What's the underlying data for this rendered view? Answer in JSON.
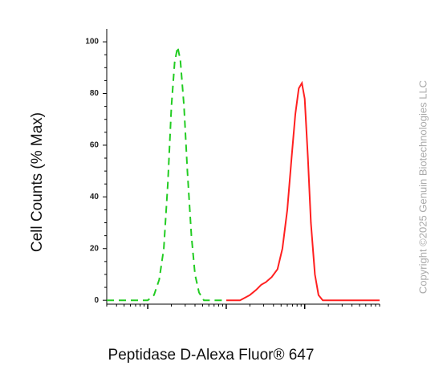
{
  "chart_data": {
    "type": "line",
    "x_label": "Peptidase D-Alexa Fluor® 647",
    "y_label": "Cell Counts (% Max)",
    "watermark": "Copyright ©2025 Genuin Biotechnologies LLC",
    "log_scale_x": true,
    "xlim": [
      3,
      9000
    ],
    "ylim": [
      -1.5,
      105
    ],
    "yticks": [
      0,
      20,
      40,
      60,
      80,
      100
    ],
    "series": [
      {
        "color": "#22cc22",
        "dashed": true,
        "x": [
          3,
          10,
          12,
          14,
          16,
          18,
          20,
          22,
          24,
          26,
          29,
          32,
          36,
          40,
          45,
          52,
          100
        ],
        "values": [
          0,
          0,
          2,
          8,
          20,
          45,
          75,
          92,
          98,
          93,
          75,
          50,
          25,
          10,
          3,
          0,
          0
        ]
      },
      {
        "color": "#ff2020",
        "dashed": false,
        "x": [
          100,
          150,
          200,
          240,
          280,
          320,
          380,
          450,
          520,
          600,
          680,
          760,
          840,
          920,
          1000,
          1100,
          1200,
          1350,
          1500,
          1700,
          9000
        ],
        "values": [
          0,
          0,
          2,
          4,
          6,
          7,
          9,
          12,
          20,
          35,
          55,
          72,
          82,
          84,
          78,
          55,
          30,
          10,
          2,
          0,
          0
        ]
      }
    ]
  }
}
